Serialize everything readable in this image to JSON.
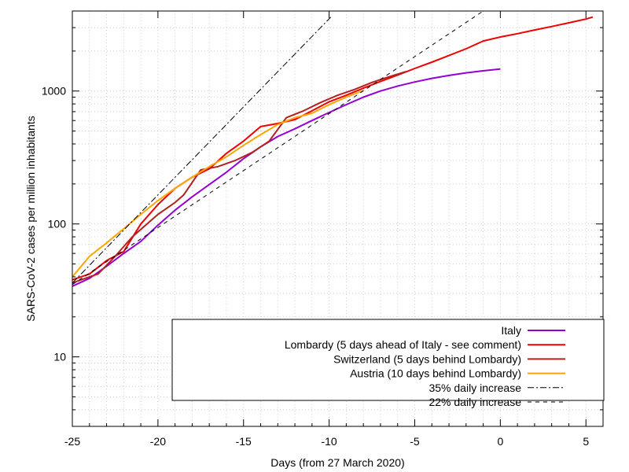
{
  "chart_data": {
    "type": "line",
    "xlabel": "Days (from 27 March 2020)",
    "ylabel": "SARS-CoV-2 cases per million inhabitants",
    "xlim": [
      -25,
      6
    ],
    "ylim": [
      3,
      4000
    ],
    "y_scale": "log",
    "x_ticks": [
      -25,
      -20,
      -15,
      -10,
      -5,
      0,
      5
    ],
    "x_tick_labels": [
      "-25",
      "-20",
      "-15",
      "-10",
      "-5",
      "0",
      "5"
    ],
    "y_ticks": [
      10,
      100,
      1000
    ],
    "y_tick_labels": [
      "10",
      "100",
      "1000"
    ],
    "grid": true,
    "legend_position": "bottom-right",
    "series": [
      {
        "name": "Italy",
        "color": "#9400d3",
        "style": "solid",
        "x": [
          -25,
          -24,
          -23,
          -22,
          -21,
          -20,
          -19,
          -18,
          -17,
          -16,
          -15,
          -14,
          -13,
          -12,
          -11,
          -10,
          -9,
          -8,
          -7,
          -6,
          -5,
          -4,
          -3,
          -2,
          -1,
          0
        ],
        "y": [
          34,
          39,
          48,
          60,
          74,
          98,
          127,
          160,
          198,
          245,
          310,
          380,
          455,
          520,
          600,
          690,
          790,
          900,
          1000,
          1090,
          1170,
          1245,
          1310,
          1370,
          1420,
          1465
        ]
      },
      {
        "name": "Lombardy (5 days ahead of Italy - see comment)",
        "color": "#ee0000",
        "style": "solid",
        "x": [
          -25,
          -24,
          -23,
          -22,
          -21,
          -20,
          -19,
          -18,
          -17,
          -16,
          -15,
          -14,
          -13,
          -12,
          -11,
          -10,
          -9,
          -8,
          -7,
          -6,
          -5,
          -4,
          -3,
          -2,
          -1,
          0,
          1,
          2,
          3,
          4,
          5,
          5.4
        ],
        "y": [
          38,
          42,
          53,
          62,
          100,
          140,
          185,
          225,
          260,
          340,
          420,
          540,
          570,
          610,
          710,
          830,
          930,
          1050,
          1180,
          1320,
          1480,
          1650,
          1850,
          2080,
          2380,
          2550,
          2700,
          2880,
          3060,
          3260,
          3480,
          3600
        ]
      },
      {
        "name": "Switzerland (5 days behind Lombardy)",
        "color": "#b22222",
        "style": "solid",
        "x": [
          -25,
          -24,
          -23.5,
          -22.5,
          -21.5,
          -20,
          -19,
          -18.5,
          -17.5,
          -16.5,
          -15.5,
          -14.5,
          -13.5,
          -12.5,
          -11.5,
          -10.5,
          -9.5,
          -8.5,
          -7.5,
          -6.5,
          -5.5
        ],
        "y": [
          36,
          40,
          42,
          57,
          80,
          118,
          145,
          165,
          255,
          270,
          300,
          345,
          420,
          630,
          710,
          820,
          930,
          1030,
          1160,
          1280,
          1400
        ]
      },
      {
        "name": "Austria (10 days behind Lombardy)",
        "color": "#ffa500",
        "style": "solid",
        "x": [
          -25,
          -24,
          -23,
          -22,
          -21,
          -20,
          -19,
          -18,
          -17,
          -16,
          -15,
          -14,
          -13,
          -12,
          -11,
          -10,
          -9,
          -8
        ],
        "y": [
          40,
          57,
          72,
          92,
          118,
          150,
          185,
          225,
          270,
          320,
          390,
          470,
          560,
          630,
          680,
          790,
          900,
          1010
        ]
      },
      {
        "name": "35% daily increase",
        "color": "#000000",
        "style": "dashdot",
        "x": [
          -25,
          -9.9
        ],
        "y": [
          36,
          3600
        ]
      },
      {
        "name": "22% daily increase",
        "color": "#000000",
        "style": "dashed",
        "x": [
          -25,
          -1
        ],
        "y": [
          35,
          4000
        ]
      }
    ]
  }
}
